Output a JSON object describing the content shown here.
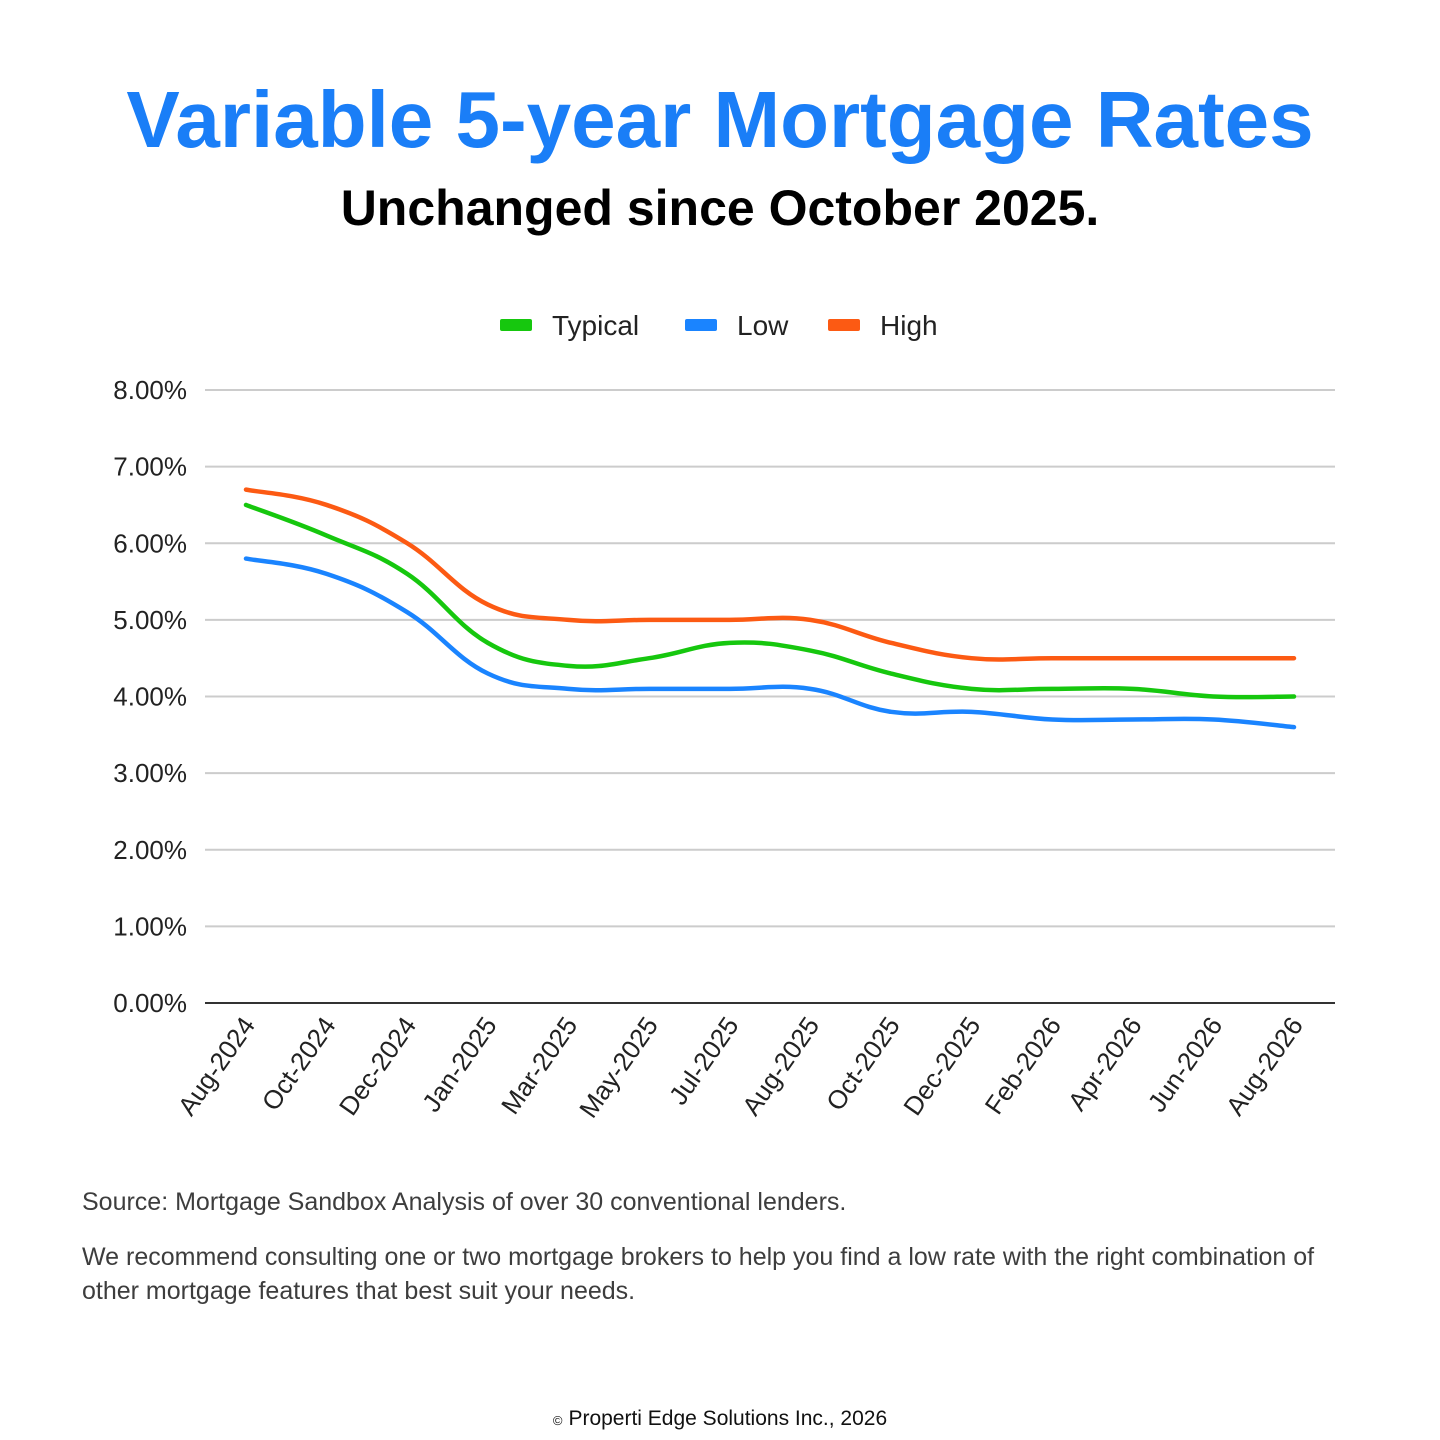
{
  "title": "Variable 5-year Mortgage Rates",
  "subtitle": "Unchanged since October 2025.",
  "colors": {
    "title": "#1a7ef7",
    "typical": "#16c70e",
    "low": "#1a84ff",
    "high": "#fc5a13",
    "grid": "#cccccc",
    "axis": "#333333"
  },
  "chart_data": {
    "type": "line",
    "categories": [
      "Aug-2024",
      "Oct-2024",
      "Dec-2024",
      "Jan-2025",
      "Mar-2025",
      "May-2025",
      "Jul-2025",
      "Aug-2025",
      "Oct-2025",
      "Dec-2025",
      "Feb-2026",
      "Apr-2026",
      "Jun-2026",
      "Aug-2026"
    ],
    "series": [
      {
        "name": "Typical",
        "color": "#16c70e",
        "values": [
          6.5,
          6.1,
          5.6,
          4.7,
          4.4,
          4.5,
          4.7,
          4.6,
          4.3,
          4.1,
          4.1,
          4.1,
          4.0,
          4.0
        ]
      },
      {
        "name": "Low",
        "color": "#1a84ff",
        "values": [
          5.8,
          5.6,
          5.1,
          4.3,
          4.1,
          4.1,
          4.1,
          4.1,
          3.8,
          3.8,
          3.7,
          3.7,
          3.7,
          3.6
        ]
      },
      {
        "name": "High",
        "color": "#fc5a13",
        "values": [
          6.7,
          6.5,
          6.0,
          5.2,
          5.0,
          5.0,
          5.0,
          5.0,
          4.7,
          4.5,
          4.5,
          4.5,
          4.5,
          4.5
        ]
      }
    ],
    "yticks": [
      "0.00%",
      "1.00%",
      "2.00%",
      "3.00%",
      "4.00%",
      "5.00%",
      "6.00%",
      "7.00%",
      "8.00%"
    ],
    "ylim": [
      0,
      8
    ],
    "grid": true,
    "legend_position": "top-center"
  },
  "source": "Source: Mortgage Sandbox Analysis of over 30 conventional lenders.",
  "note": "We recommend consulting one or two mortgage brokers to help you find a low rate with the right combination of other mortgage features that best suit your needs.",
  "footer": {
    "symbol": "©",
    "text": "Properti Edge Solutions Inc., 2026"
  }
}
